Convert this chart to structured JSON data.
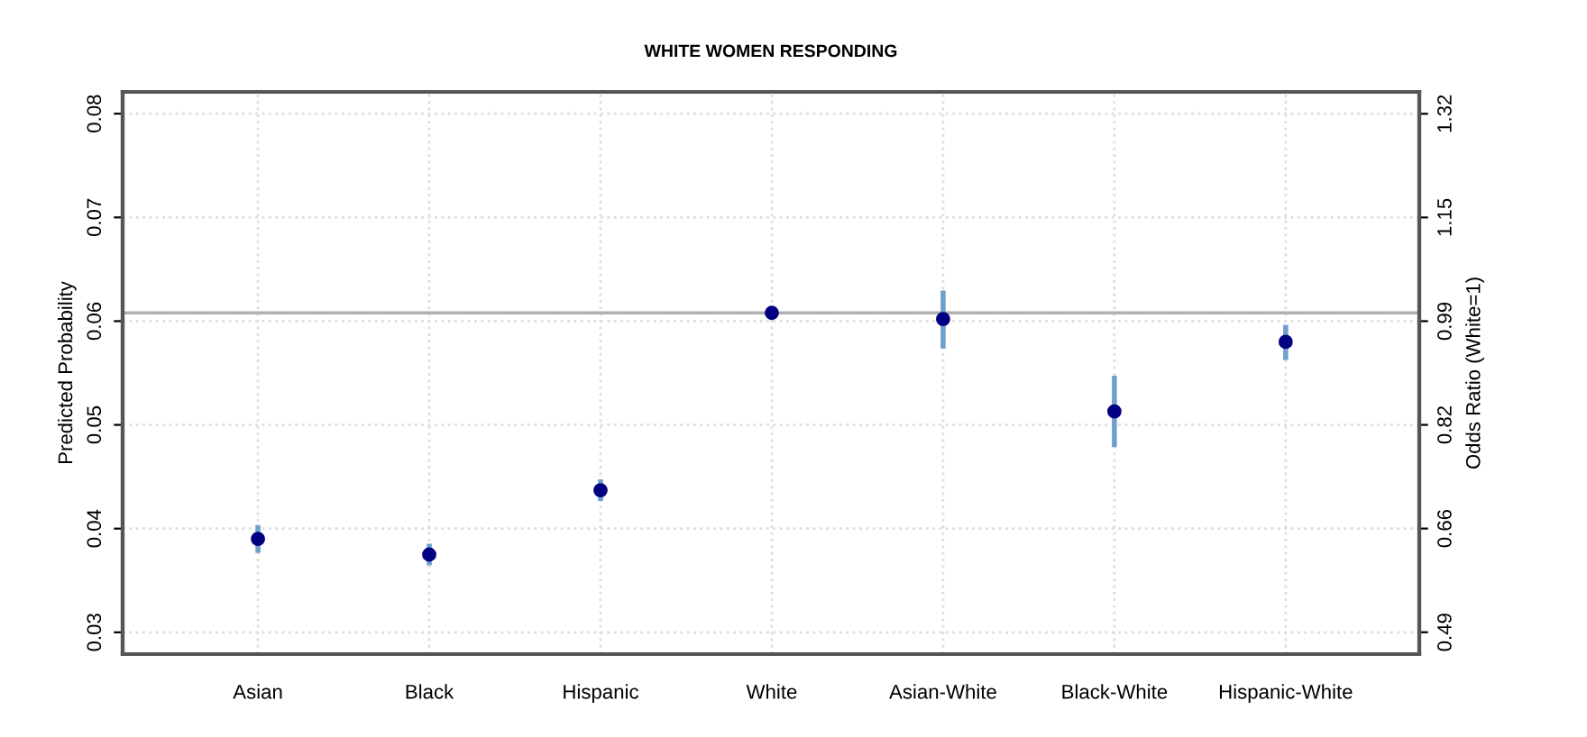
{
  "chart_data": {
    "type": "scatter",
    "title": "WHITE WOMEN RESPONDING",
    "ylabel": "Predicted Probability",
    "y2label": "Odds Ratio (White=1)",
    "categories": [
      "Asian",
      "Black",
      "Hispanic",
      "White",
      "Asian-White",
      "Black-White",
      "Hispanic-White"
    ],
    "series": [
      {
        "color": "#000080",
        "values": [
          0.039,
          0.0375,
          0.0437,
          0.0608,
          0.0602,
          0.0513,
          0.058
        ],
        "errors": [
          [
            0.0379,
            0.0401
          ],
          [
            0.0367,
            0.0383
          ],
          [
            0.0429,
            0.0445
          ],
          [
            0.0605,
            0.0611
          ],
          [
            0.0576,
            0.0627
          ],
          [
            0.0481,
            0.0545
          ],
          [
            0.0565,
            0.0594
          ]
        ]
      }
    ],
    "ylim": [
      0.0279,
      0.0821
    ],
    "yticks": [
      0.03,
      0.04,
      0.05,
      0.06,
      0.07,
      0.08
    ],
    "y2lim": [
      0.455,
      1.355
    ],
    "y2ticks": [
      {
        "value": 0.49,
        "label": "0.49"
      },
      {
        "value": 0.656,
        "label": "0.66"
      },
      {
        "value": 0.822,
        "label": "0.82"
      },
      {
        "value": 0.988,
        "label": "0.99"
      },
      {
        "value": 1.154,
        "label": "1.15"
      },
      {
        "value": 1.32,
        "label": "1.32"
      }
    ],
    "ref_lines": [
      {
        "axis": "y",
        "value": 0.0608,
        "color": "#b0b0b0"
      }
    ],
    "grid": true,
    "marker": "circle"
  }
}
